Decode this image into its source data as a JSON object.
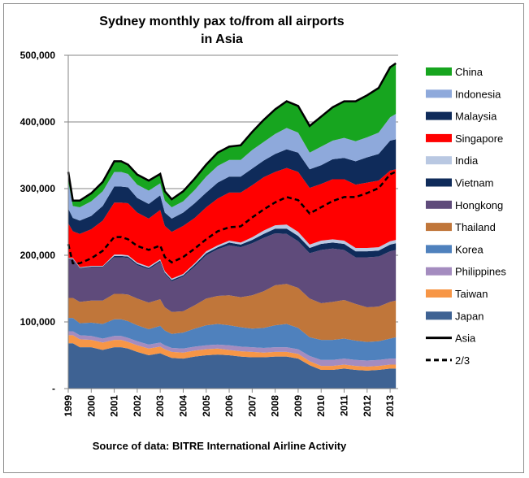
{
  "chart_data": {
    "type": "area",
    "title_lines": [
      "Sydney monthly pax to/from all airports",
      "in Asia"
    ],
    "source_note": "Source of data: BITRE International Airline Activity",
    "ylim": [
      0,
      500000
    ],
    "y_ticks": [
      {
        "value": 0,
        "label": "-"
      },
      {
        "value": 100000,
        "label": "100,000"
      },
      {
        "value": 200000,
        "label": "200,000"
      },
      {
        "value": 300000,
        "label": "300,000"
      },
      {
        "value": 400000,
        "label": "400,000"
      },
      {
        "value": 500000,
        "label": "500,000"
      }
    ],
    "xlim": [
      1999.0,
      2013.35
    ],
    "x_ticks": [
      "1999",
      "2000",
      "2001",
      "2002",
      "2003",
      "2004",
      "2005",
      "2006",
      "2007",
      "2008",
      "2009",
      "2010",
      "2011",
      "2012",
      "2013"
    ],
    "x": [
      1999.0,
      1999.2,
      1999.5,
      2000.0,
      2000.5,
      2001.0,
      2001.3,
      2001.6,
      2002.0,
      2002.5,
      2003.0,
      2003.2,
      2003.5,
      2004.0,
      2004.5,
      2005.0,
      2005.5,
      2006.0,
      2006.5,
      2007.0,
      2007.5,
      2008.0,
      2008.5,
      2009.0,
      2009.5,
      2010.0,
      2010.5,
      2011.0,
      2011.5,
      2012.0,
      2012.5,
      2013.0,
      2013.25
    ],
    "series": [
      {
        "name": "Japan",
        "color": "#3e6293",
        "values": [
          68000,
          68000,
          62000,
          62000,
          58000,
          62000,
          62000,
          60000,
          55000,
          50000,
          53000,
          50000,
          46000,
          45000,
          48000,
          50000,
          51000,
          50000,
          48000,
          47000,
          47000,
          48000,
          48000,
          45000,
          35000,
          28000,
          28000,
          30000,
          28000,
          27000,
          28000,
          30000,
          30000
        ]
      },
      {
        "name": "Taiwan",
        "color": "#f79646",
        "values": [
          12000,
          12000,
          12000,
          11000,
          11000,
          11000,
          11000,
          10000,
          10000,
          10000,
          10000,
          9000,
          9000,
          9000,
          9000,
          9000,
          9000,
          8000,
          8000,
          8000,
          7000,
          7000,
          7000,
          7000,
          6000,
          6000,
          6000,
          6000,
          6000,
          6000,
          6000,
          6000,
          6000
        ]
      },
      {
        "name": "Philippines",
        "color": "#a48cbf",
        "values": [
          6000,
          6000,
          6000,
          6000,
          6000,
          6000,
          6000,
          6000,
          6000,
          6000,
          6000,
          6000,
          6000,
          6000,
          6000,
          6000,
          6000,
          7000,
          7000,
          7000,
          7000,
          7000,
          7000,
          7000,
          8000,
          9000,
          9000,
          9000,
          9000,
          9000,
          9000,
          9000,
          9000
        ]
      },
      {
        "name": "Korea",
        "color": "#4f81bd",
        "values": [
          20000,
          20000,
          18000,
          20000,
          22000,
          25000,
          25000,
          25000,
          24000,
          23000,
          25000,
          22000,
          21000,
          24000,
          27000,
          30000,
          31000,
          30000,
          29000,
          28000,
          30000,
          33000,
          35000,
          32000,
          28000,
          30000,
          30000,
          30000,
          29000,
          28000,
          28000,
          30000,
          32000
        ]
      },
      {
        "name": "Thailand",
        "color": "#c0763a",
        "values": [
          30000,
          30000,
          32000,
          33000,
          35000,
          38000,
          38000,
          40000,
          40000,
          40000,
          40000,
          35000,
          33000,
          32000,
          35000,
          40000,
          42000,
          45000,
          45000,
          50000,
          55000,
          60000,
          60000,
          60000,
          58000,
          55000,
          57000,
          58000,
          55000,
          52000,
          52000,
          55000,
          55000
        ]
      },
      {
        "name": "Hongkong",
        "color": "#5f4b7b",
        "values": [
          58000,
          58000,
          50000,
          50000,
          50000,
          55000,
          55000,
          55000,
          50000,
          50000,
          56000,
          50000,
          46000,
          52000,
          58000,
          65000,
          70000,
          75000,
          75000,
          78000,
          80000,
          78000,
          75000,
          70000,
          68000,
          80000,
          80000,
          75000,
          70000,
          75000,
          75000,
          76000,
          76000
        ]
      },
      {
        "name": "Vietnam",
        "color": "#0f2b5a",
        "values": [
          1000,
          1000,
          1000,
          1000,
          1000,
          2000,
          2000,
          2000,
          2000,
          2000,
          2000,
          2000,
          2000,
          2000,
          3000,
          3000,
          3000,
          4000,
          4000,
          5000,
          6000,
          7000,
          8000,
          8000,
          8000,
          9000,
          9000,
          9000,
          9000,
          9000,
          9000,
          10000,
          10000
        ]
      },
      {
        "name": "India",
        "color": "#b9c8e2",
        "values": [
          1000,
          1000,
          1000,
          1000,
          1000,
          2000,
          2000,
          2000,
          2000,
          2000,
          2000,
          2000,
          2000,
          2000,
          2000,
          3000,
          3000,
          3000,
          3000,
          4000,
          5000,
          5000,
          6000,
          6000,
          5000,
          5000,
          5000,
          5000,
          5000,
          5000,
          5000,
          5000,
          5000
        ]
      },
      {
        "name": "Singapore",
        "color": "#ff0000",
        "values": [
          52000,
          40000,
          50000,
          55000,
          68000,
          78000,
          78000,
          78000,
          75000,
          72000,
          74000,
          68000,
          70000,
          72000,
          68000,
          66000,
          70000,
          72000,
          75000,
          78000,
          80000,
          80000,
          85000,
          90000,
          85000,
          85000,
          90000,
          92000,
          95000,
          98000,
          100000,
          106000,
          106000
        ]
      },
      {
        "name": "Malaysia",
        "color": "#0f2b5a",
        "values": [
          22000,
          20000,
          20000,
          20000,
          22000,
          24000,
          24000,
          24000,
          22000,
          22000,
          22000,
          20000,
          20000,
          20000,
          22000,
          22000,
          24000,
          24000,
          24000,
          25000,
          25000,
          27000,
          28000,
          29000,
          28000,
          28000,
          30000,
          32000,
          35000,
          38000,
          40000,
          45000,
          45000
        ]
      },
      {
        "name": "Indonesia",
        "color": "#8ea9db",
        "values": [
          40000,
          18000,
          20000,
          22000,
          22000,
          22000,
          22000,
          20000,
          20000,
          20000,
          18000,
          18000,
          17000,
          17000,
          20000,
          24000,
          25000,
          25000,
          25000,
          28000,
          28000,
          30000,
          32000,
          30000,
          25000,
          28000,
          28000,
          30000,
          30000,
          30000,
          32000,
          35000,
          38000
        ]
      },
      {
        "name": "China",
        "color": "#17a51f",
        "values": [
          15000,
          8000,
          10000,
          12000,
          14000,
          16000,
          16000,
          14000,
          15000,
          15000,
          14000,
          14000,
          12000,
          15000,
          17000,
          18000,
          20000,
          20000,
          22000,
          27000,
          33000,
          37000,
          40000,
          40000,
          40000,
          45000,
          50000,
          55000,
          60000,
          63000,
          67000,
          75000,
          76000
        ]
      }
    ],
    "legend": [
      {
        "name": "China",
        "kind": "box",
        "color": "#17a51f"
      },
      {
        "name": "Indonesia",
        "kind": "box",
        "color": "#8ea9db"
      },
      {
        "name": "Malaysia",
        "kind": "box",
        "color": "#0f2b5a"
      },
      {
        "name": "Singapore",
        "kind": "box",
        "color": "#ff0000"
      },
      {
        "name": "India",
        "kind": "box",
        "color": "#b9c8e2"
      },
      {
        "name": "Vietnam",
        "kind": "box",
        "color": "#0f2b5a"
      },
      {
        "name": "Hongkong",
        "kind": "box",
        "color": "#5f4b7b"
      },
      {
        "name": "Thailand",
        "kind": "box",
        "color": "#c0763a"
      },
      {
        "name": "Korea",
        "kind": "box",
        "color": "#4f81bd"
      },
      {
        "name": "Philippines",
        "kind": "box",
        "color": "#a48cbf"
      },
      {
        "name": "Taiwan",
        "kind": "box",
        "color": "#f79646"
      },
      {
        "name": "Japan",
        "kind": "box",
        "color": "#3e6293"
      },
      {
        "name": "Asia",
        "kind": "solid-line",
        "color": "#000000"
      },
      {
        "name": "2/3",
        "kind": "dashed-line",
        "color": "#000000"
      }
    ],
    "lines": [
      {
        "name": "Asia",
        "style": "solid",
        "color": "#000000",
        "source": "total"
      },
      {
        "name": "2/3",
        "style": "dashed",
        "color": "#000000",
        "source": "two_thirds_of_total"
      }
    ],
    "legend_placement": "right",
    "grid": "horizontal"
  }
}
